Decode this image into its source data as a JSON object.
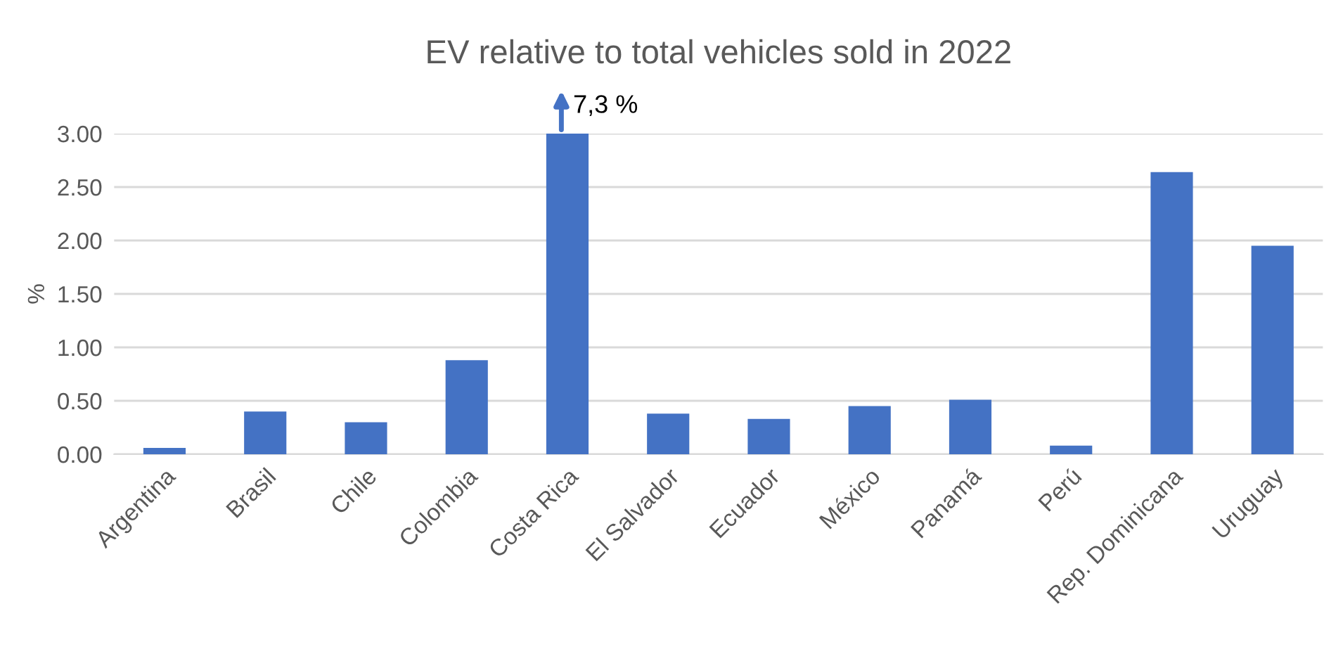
{
  "chart_data": {
    "type": "bar",
    "title": "EV relative to total vehicles sold in 2022",
    "ylabel": "%",
    "categories": [
      "Argentina",
      "Brasil",
      "Chile",
      "Colombia",
      "Costa Rica",
      "El Salvador",
      "Ecuador",
      "México",
      "Panamá",
      "Perú",
      "Rep. Dominicana",
      "Uruguay"
    ],
    "values": [
      0.06,
      0.4,
      0.3,
      0.88,
      3.0,
      0.38,
      0.33,
      0.45,
      0.51,
      0.08,
      2.64,
      1.95
    ],
    "color": "#4472c4",
    "ylim": [
      0,
      3.0
    ],
    "yticks": [
      {
        "value": 0,
        "label": "0.00"
      },
      {
        "value": 0.5,
        "label": "0.50"
      },
      {
        "value": 1.0,
        "label": "1.00"
      },
      {
        "value": 1.5,
        "label": "1.50"
      },
      {
        "value": 2.0,
        "label": "2.00"
      },
      {
        "value": 2.5,
        "label": "2.50"
      },
      {
        "value": 3.0,
        "label": "3.00"
      }
    ],
    "grid": "y",
    "annotations": [
      {
        "text": "7,3 %",
        "x": "Costa Rica",
        "y": 3.0
      }
    ]
  }
}
